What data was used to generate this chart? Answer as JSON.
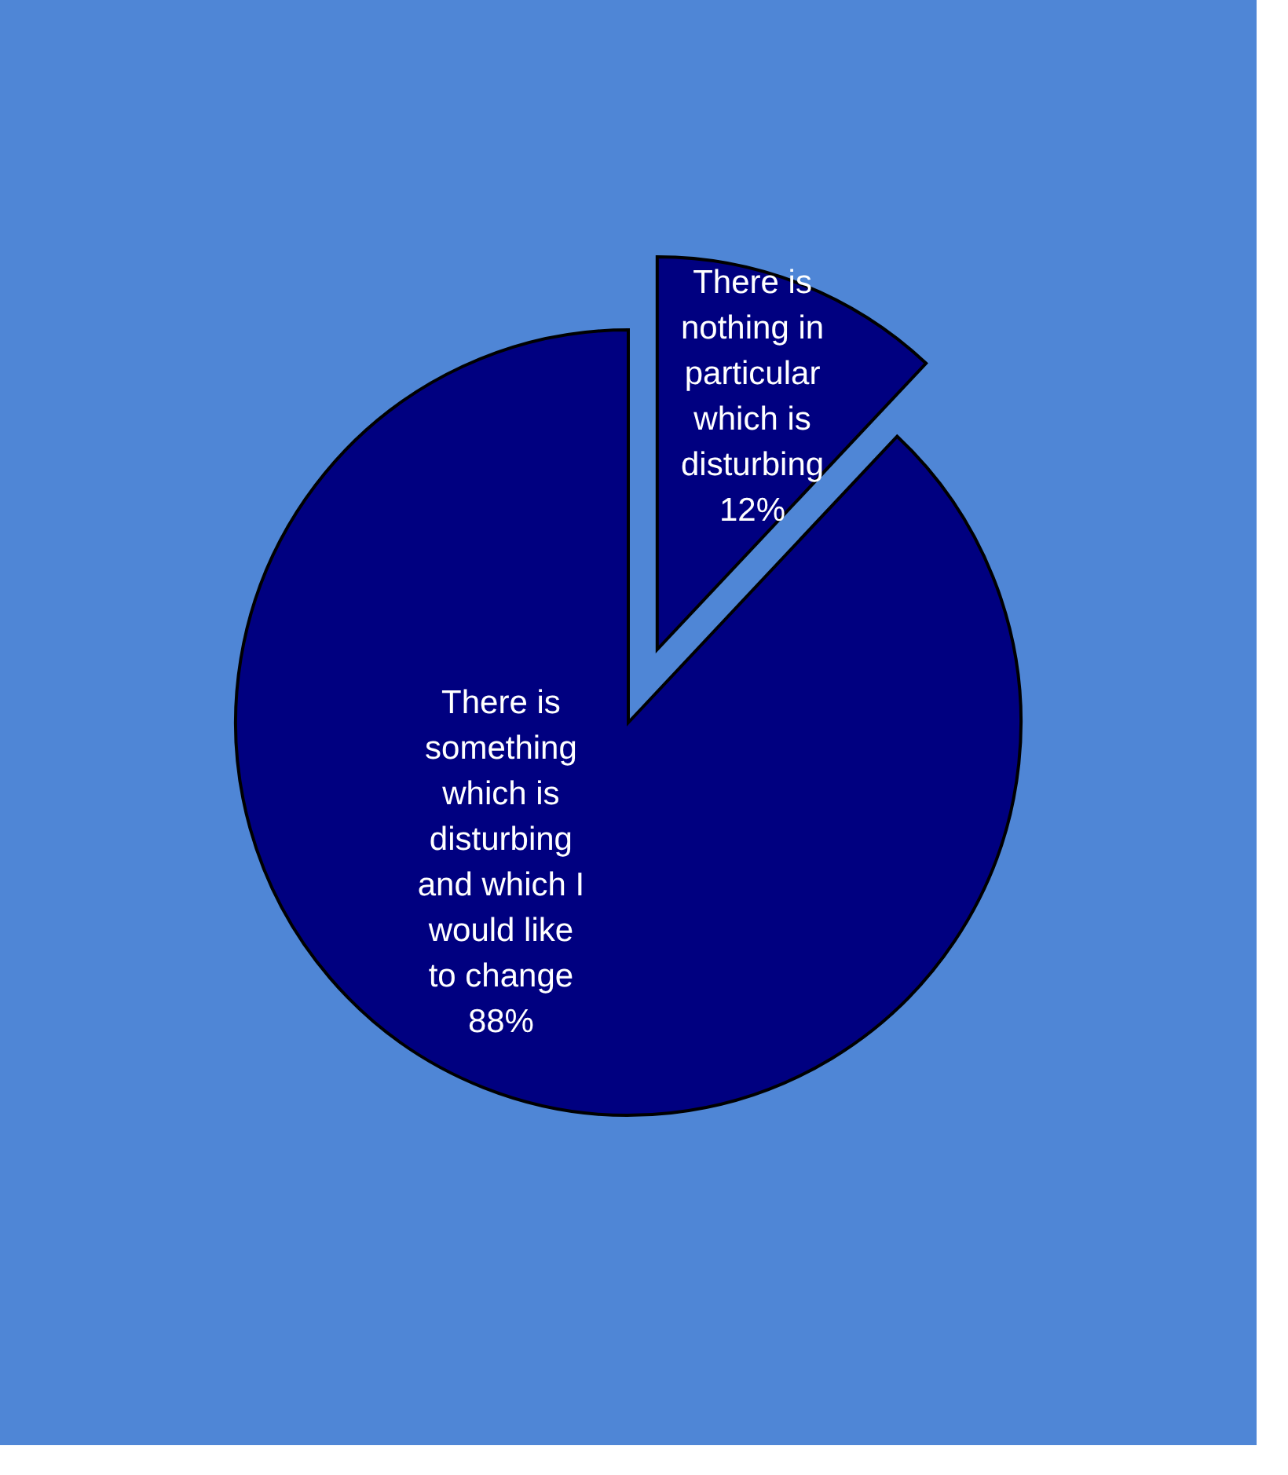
{
  "chart_data": {
    "type": "pie",
    "categories": [
      "There is nothing in particular which is disturbing",
      "There is something which is disturbing and which I would like to change"
    ],
    "values": [
      12,
      88
    ],
    "colors": [
      "#000080",
      "#000080"
    ],
    "value_labels": [
      "12%",
      "88%"
    ]
  }
}
